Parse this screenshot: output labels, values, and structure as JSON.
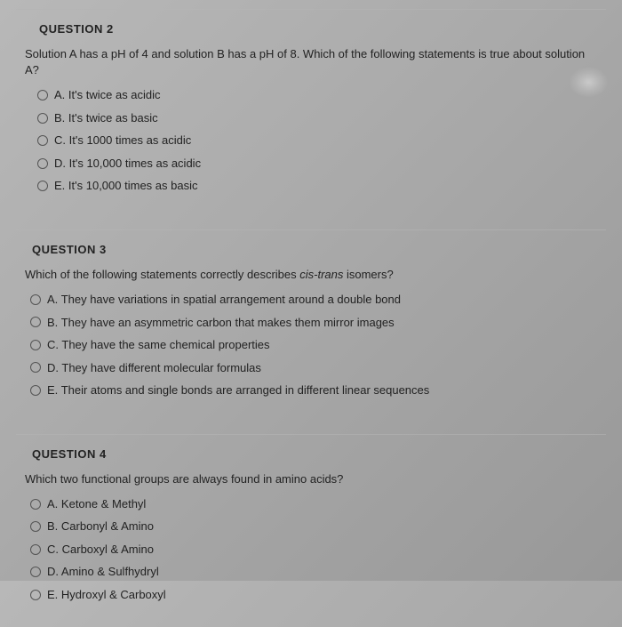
{
  "questions": [
    {
      "title": "QUESTION 2",
      "prompt": "Solution A has a pH of 4 and solution B has a pH of 8.  Which of the following statements is true about solution A?",
      "options": [
        {
          "letter": "A.",
          "text": "It's twice as acidic"
        },
        {
          "letter": "B.",
          "text": "It's twice as basic"
        },
        {
          "letter": "C.",
          "text": "It's 1000 times as acidic"
        },
        {
          "letter": "D.",
          "text": "It's 10,000 times as acidic"
        },
        {
          "letter": "E.",
          "text": "It's 10,000 times as basic"
        }
      ]
    },
    {
      "title": "QUESTION 3",
      "prompt_pre": "Which of the following statements correctly describes ",
      "prompt_italic": "cis-trans",
      "prompt_post": " isomers?",
      "options": [
        {
          "letter": "A.",
          "text": "They have variations in spatial arrangement around a double bond"
        },
        {
          "letter": "B.",
          "text": "They have an asymmetric carbon that makes them mirror images"
        },
        {
          "letter": "C.",
          "text": "They have the same chemical properties"
        },
        {
          "letter": "D.",
          "text": "They have different molecular formulas"
        },
        {
          "letter": "E.",
          "text": "Their atoms and single bonds are arranged in different linear sequences"
        }
      ]
    },
    {
      "title": "QUESTION 4",
      "prompt": "Which two functional groups are always found in amino acids?",
      "options": [
        {
          "letter": "A.",
          "text": "Ketone & Methyl"
        },
        {
          "letter": "B.",
          "text": "Carbonyl & Amino"
        },
        {
          "letter": "C.",
          "text": "Carboxyl & Amino"
        },
        {
          "letter": "D.",
          "text": "Amino & Sulfhydryl"
        },
        {
          "letter": "E.",
          "text": "Hydroxyl & Carboxyl"
        }
      ]
    }
  ]
}
